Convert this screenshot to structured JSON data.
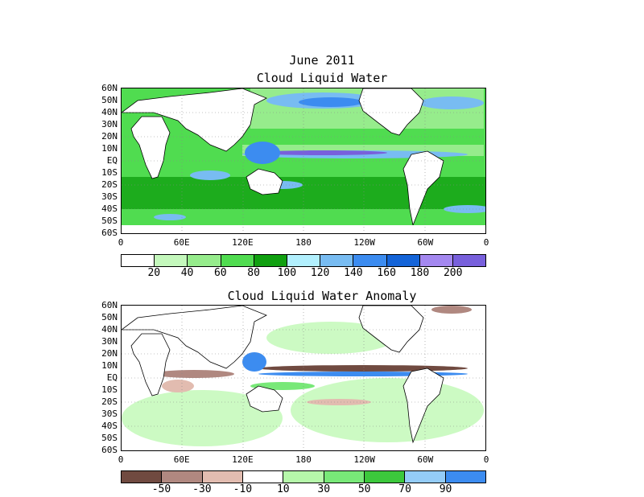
{
  "header": {
    "date": "June 2011"
  },
  "panel1": {
    "title": "Cloud Liquid Water",
    "y_labels": [
      "60N",
      "50N",
      "40N",
      "30N",
      "20N",
      "10N",
      "EQ",
      "10S",
      "20S",
      "30S",
      "40S",
      "50S",
      "60S"
    ],
    "x_labels": [
      "0",
      "60E",
      "120E",
      "180",
      "120W",
      "60W",
      "0"
    ],
    "colorbar": {
      "colors": [
        "#ffffff",
        "#c4f8bc",
        "#96ec8c",
        "#50dc50",
        "#10a010",
        "#b2f0fe",
        "#78bcf2",
        "#3c8cf0",
        "#1464d8",
        "#a488f0",
        "#7860dc"
      ],
      "labels": [
        "20",
        "40",
        "60",
        "80",
        "100",
        "120",
        "140",
        "160",
        "180",
        "200"
      ]
    }
  },
  "panel2": {
    "title": "Cloud Liquid Water Anomaly",
    "y_labels": [
      "60N",
      "50N",
      "40N",
      "30N",
      "20N",
      "10N",
      "EQ",
      "10S",
      "20S",
      "30S",
      "40S",
      "50S",
      "60S"
    ],
    "x_labels": [
      "0",
      "60E",
      "120E",
      "180",
      "120W",
      "60W",
      "0"
    ],
    "colorbar": {
      "colors": [
        "#704a40",
        "#b08880",
        "#e2bcb0",
        "#ffffff",
        "#b6f8aa",
        "#78e878",
        "#3cc83c",
        "#94ccf8",
        "#3c8cf0"
      ],
      "labels": [
        "-50",
        "-30",
        "-10",
        "10",
        "30",
        "50",
        "70",
        "90"
      ]
    }
  }
}
